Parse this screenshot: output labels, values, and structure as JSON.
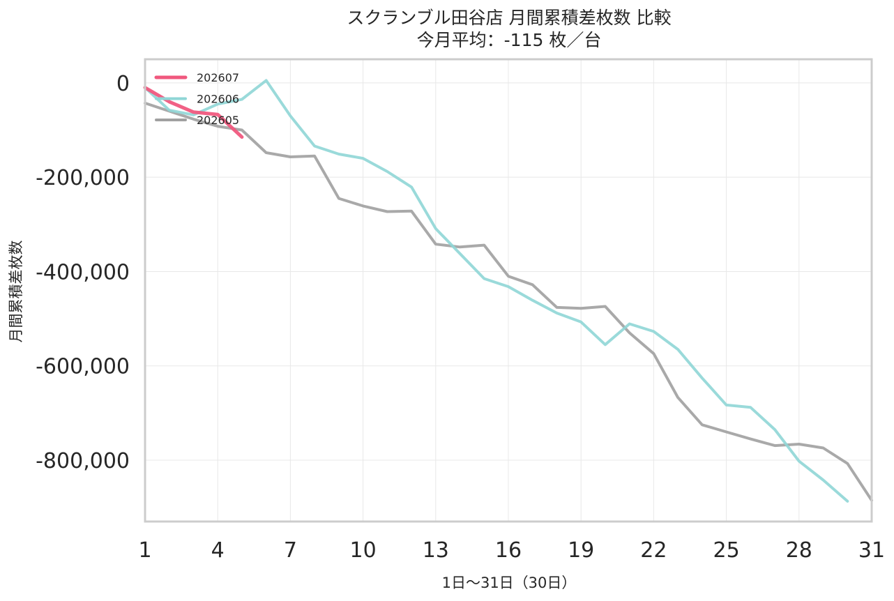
{
  "chart_data": {
    "type": "line",
    "title": "スクランブル田谷店 月間累積差枚数 比較",
    "subtitle": "今月平均：-115 枚／台",
    "xlabel": "1日〜31日（30日）",
    "ylabel": "月間累積差枚数",
    "xlim": [
      1,
      31
    ],
    "ylim": [
      -930000,
      50000
    ],
    "xticks": [
      "1",
      "4",
      "7",
      "10",
      "13",
      "16",
      "19",
      "22",
      "25",
      "28",
      "31"
    ],
    "yticks": [
      "0",
      "-200,000",
      "-400,000",
      "-600,000",
      "-800,000"
    ],
    "grid": true,
    "legend": "top-left",
    "series": [
      {
        "name": "202607",
        "color": "#f0587e",
        "x": [
          1,
          2,
          3,
          4,
          5
        ],
        "y": [
          -10000,
          -40000,
          -62000,
          -67000,
          -115000
        ]
      },
      {
        "name": "202606",
        "color": "#8fd6d6",
        "x": [
          1,
          2,
          3,
          4,
          5,
          6,
          7,
          8,
          9,
          10,
          11,
          12,
          13,
          14,
          15,
          16,
          17,
          18,
          19,
          20,
          21,
          22,
          23,
          24,
          25,
          26,
          27,
          28,
          29,
          30
        ],
        "y": [
          -10000,
          -58000,
          -68000,
          -45000,
          -35000,
          5000,
          -70000,
          -134000,
          -151000,
          -160000,
          -188000,
          -221000,
          -309000,
          -362000,
          -415000,
          -432000,
          -461000,
          -488000,
          -507000,
          -555000,
          -511000,
          -527000,
          -565000,
          -626000,
          -683000,
          -688000,
          -735000,
          -802000,
          -842000,
          -887000
        ]
      },
      {
        "name": "202605",
        "color": "#a0a0a0",
        "x": [
          1,
          2,
          3,
          4,
          5,
          6,
          7,
          8,
          9,
          10,
          11,
          12,
          13,
          14,
          15,
          16,
          17,
          18,
          19,
          20,
          21,
          22,
          23,
          24,
          25,
          26,
          27,
          28,
          29,
          30,
          31
        ],
        "y": [
          -43000,
          -60000,
          -77000,
          -92000,
          -100000,
          -148000,
          -157000,
          -155000,
          -245000,
          -261000,
          -273000,
          -272000,
          -342000,
          -348000,
          -344000,
          -410000,
          -428000,
          -476000,
          -478000,
          -474000,
          -530000,
          -574000,
          -667000,
          -725000,
          -740000,
          -755000,
          -769000,
          -766000,
          -774000,
          -807000,
          -885000
        ]
      }
    ]
  }
}
